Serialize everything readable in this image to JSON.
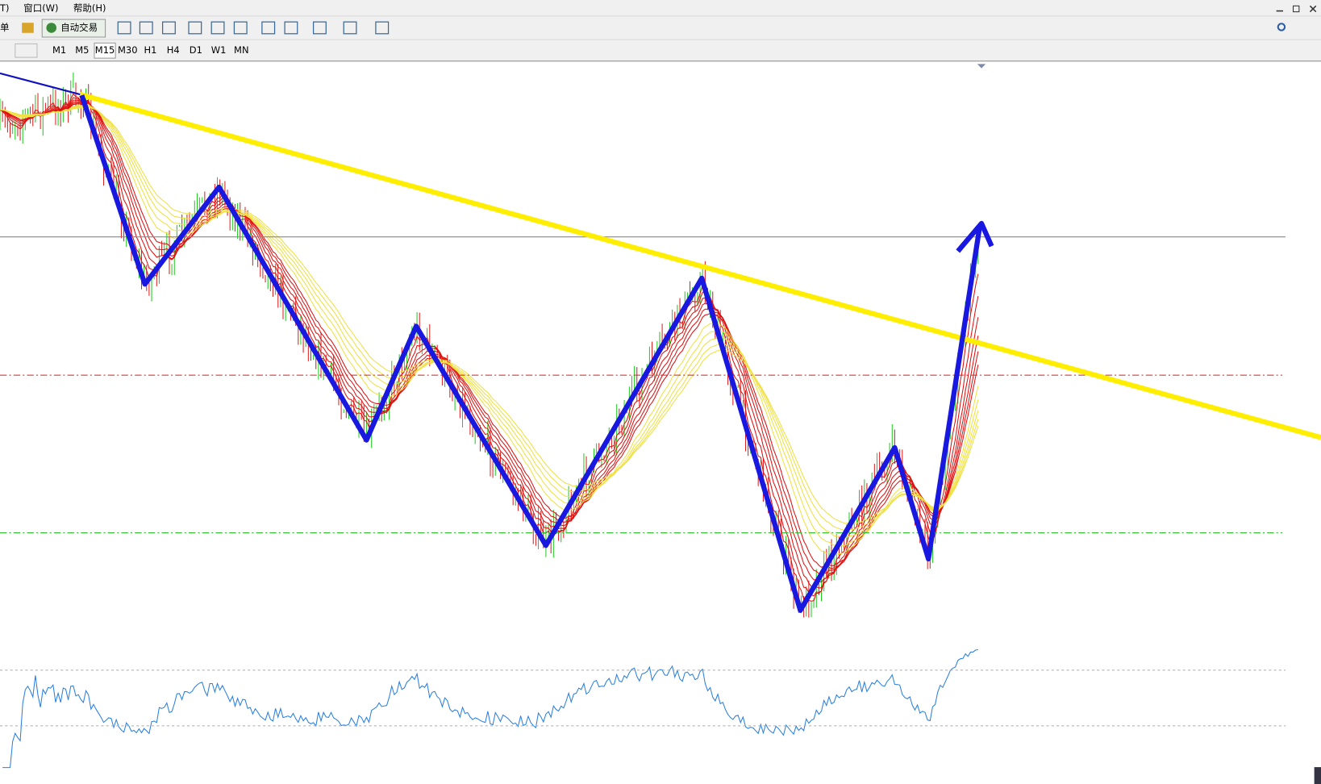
{
  "menu": [
    "T)",
    "窗口(W)",
    "帮助(H)"
  ],
  "toolbar": {
    "order": "单",
    "auto_trade": "自动交易"
  },
  "timeframes": [
    "M1",
    "M5",
    "M15",
    "M30",
    "H1",
    "H4",
    "D1",
    "W1",
    "MN"
  ]
}
